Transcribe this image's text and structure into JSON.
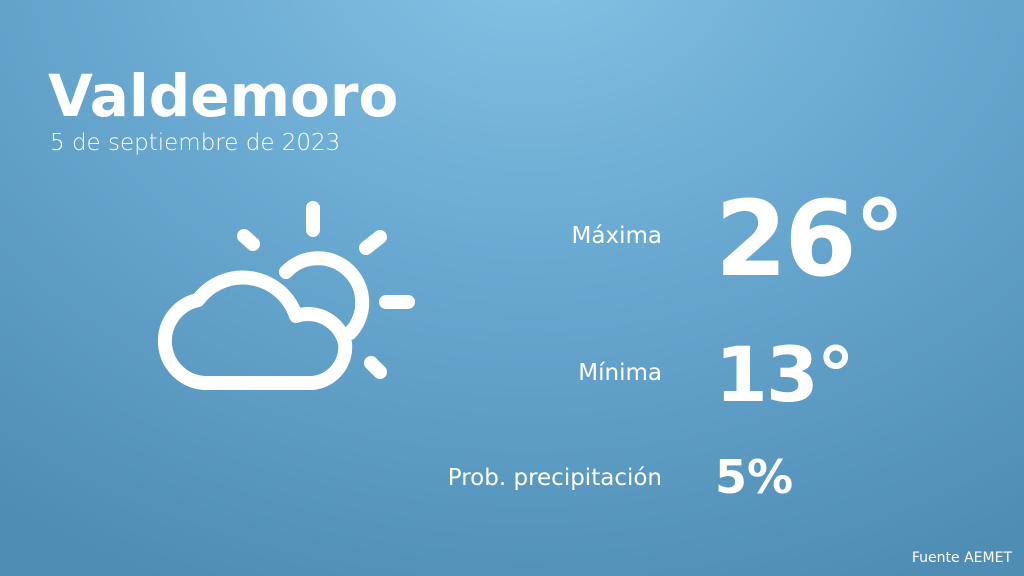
{
  "header": {
    "city": "Valdemoro",
    "date": "5 de septiembre de 2023"
  },
  "weather": {
    "icon": "partly-cloudy-icon",
    "max_label": "Máxima",
    "max_value": "26°",
    "min_label": "Mínima",
    "min_value": "13°",
    "prob_label": "Prob. precipitación",
    "prob_value": "5%"
  },
  "footer": {
    "source": "Fuente AEMET"
  },
  "colors": {
    "background_top": "#86c3e6",
    "background_bottom": "#4f8db5",
    "text": "#ffffff"
  }
}
